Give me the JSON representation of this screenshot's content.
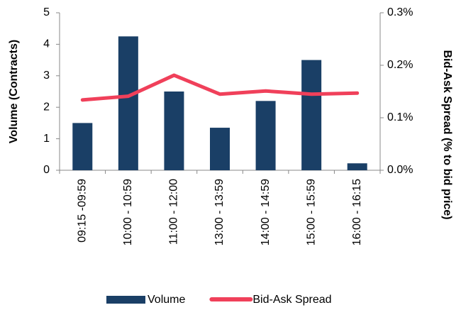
{
  "chart_data": {
    "type": "bar",
    "categories": [
      "09:15 -09:59",
      "10:00 - 10:59",
      "11:00 - 12:00",
      "13:00 - 13:59",
      "14:00 - 14:59",
      "15:00 - 15:59",
      "16:00 - 16:15"
    ],
    "series": [
      {
        "name": "Volume",
        "type": "bar",
        "color": "#1a3f66",
        "values": [
          1.5,
          4.25,
          2.5,
          1.35,
          2.2,
          3.5,
          0.22
        ]
      },
      {
        "name": "Bid-Ask Spread",
        "type": "line",
        "axis": "y2",
        "color": "#f0405a",
        "values": [
          0.134,
          0.141,
          0.181,
          0.145,
          0.151,
          0.145,
          0.147
        ]
      }
    ],
    "ylabel": "Volume (Contracts)",
    "y2label": "Bid-Ask Spread (% to bid price)",
    "ylim": [
      0,
      5
    ],
    "yticks": [
      0,
      1,
      2,
      3,
      4,
      5
    ],
    "y2lim": [
      0,
      0.3
    ],
    "y2ticks": [
      {
        "value": 0,
        "label": "0.0%"
      },
      {
        "value": 0.1,
        "label": "0.1%"
      },
      {
        "value": 0.2,
        "label": "0.2%"
      },
      {
        "value": 0.3,
        "label": "0.3%"
      }
    ],
    "legend": "bottom"
  }
}
